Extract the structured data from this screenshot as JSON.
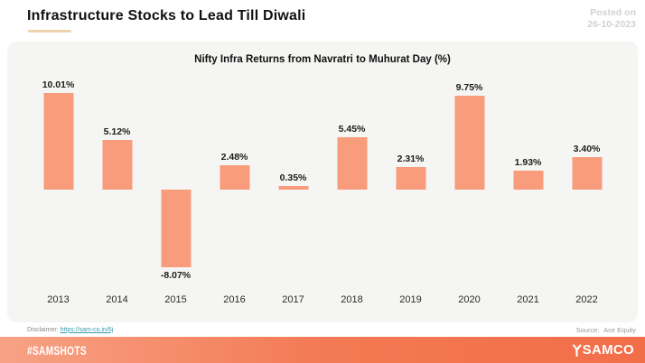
{
  "header": {
    "title": "Infrastructure Stocks to Lead Till Diwali",
    "posted_label": "Posted on",
    "posted_date": "26-10-2023"
  },
  "chart_data": {
    "type": "bar",
    "title": "Nifty Infra Returns from Navratri to Muhurat Day (%)",
    "categories": [
      "2013",
      "2014",
      "2015",
      "2016",
      "2017",
      "2018",
      "2019",
      "2020",
      "2021",
      "2022"
    ],
    "values": [
      10.01,
      5.12,
      -8.07,
      2.48,
      0.35,
      5.45,
      2.31,
      9.75,
      1.93,
      3.4
    ],
    "value_labels": [
      "10.01%",
      "5.12%",
      "-8.07%",
      "2.48%",
      "0.35%",
      "5.45%",
      "2.31%",
      "9.75%",
      "1.93%",
      "3.40%"
    ],
    "bar_color": "#f89c7c",
    "xlabel": "",
    "ylabel": "",
    "ylim": [
      -9,
      11
    ],
    "grid": false,
    "legend": null
  },
  "footnotes": {
    "disclaimer_label": "Disclaimer:",
    "disclaimer_link": "https://sam-co.in/6j",
    "source_label": "Source:",
    "source_value": "Ace Equity"
  },
  "footer": {
    "hashtag": "#SAMSHOTS",
    "brand": "SAMCO"
  },
  "colors": {
    "bar": "#f89c7c",
    "card_background": "#f5f5f3",
    "footer_gradient_start": "#f7a285",
    "footer_gradient_end": "#f26e49",
    "title_underline": "#ecd2ad",
    "posted_text": "#d2d2d2",
    "link": "#3a9bac"
  }
}
